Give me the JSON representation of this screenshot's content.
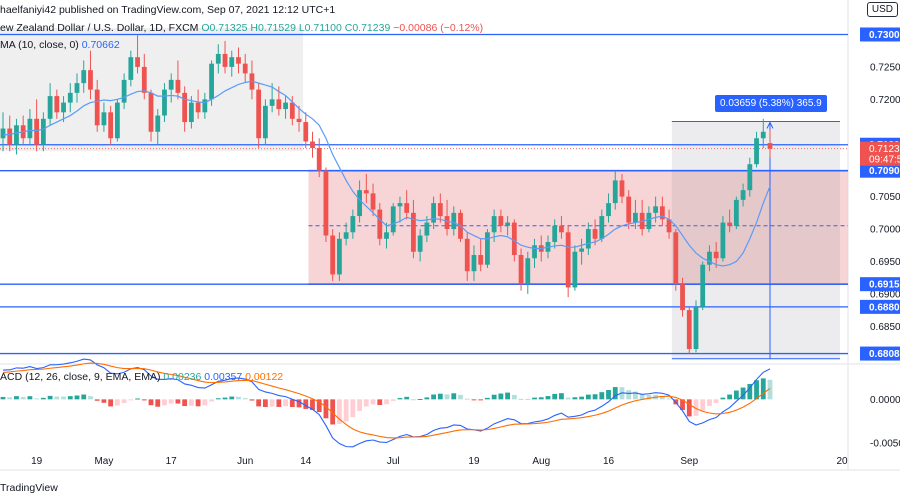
{
  "header": {
    "published": "haelfaniyi42 published on TradingView.com, Sep 07, 2021 12:12 UTC+1",
    "symbol": "ew Zealand Dollar / U.S. Dollar, 1D, FXCM",
    "ohlc": "O0.71325 H0.71529 L0.71100 C0.71239",
    "change": "−0.00086 (−0.12%)",
    "ma_label": "MA (10, close, 0)",
    "ma_value": "0.70662",
    "macd_label": "ACD (12, 26, close, 9, EMA, EMA)",
    "macd_hist": "0.00236",
    "macd_line": "0.00357",
    "macd_signal": "0.00122"
  },
  "currency_badge": "USD",
  "brand": "TradingView",
  "measure_label": "0.03659 (5.38%) 365.9",
  "price_axis": [
    {
      "v": 0.725,
      "t": "0.72500"
    },
    {
      "v": 0.72,
      "t": "0.72000"
    },
    {
      "v": 0.705,
      "t": "0.70500"
    },
    {
      "v": 0.7,
      "t": "0.70000"
    },
    {
      "v": 0.695,
      "t": "0.69500"
    },
    {
      "v": 0.69,
      "t": "0.69000"
    },
    {
      "v": 0.685,
      "t": "0.68500"
    }
  ],
  "price_levels": [
    {
      "v": 0.73,
      "t": "0.73000"
    },
    {
      "v": 0.713,
      "t": "0.71300"
    },
    {
      "v": 0.709,
      "t": "0.70900"
    },
    {
      "v": 0.6915,
      "t": "0.69150"
    },
    {
      "v": 0.688,
      "t": "0.68800"
    },
    {
      "v": 0.6808,
      "t": "0.68080"
    }
  ],
  "current_price": {
    "v": 0.71239,
    "t": "0.71239",
    "countdown": "09:47:5"
  },
  "macd_axis": [
    {
      "v": 0.0,
      "t": "0.00000"
    },
    {
      "v": -0.005,
      "t": "-0.00500"
    }
  ],
  "x_axis": [
    "19",
    "May",
    "17",
    "Jun",
    "14",
    "Jul",
    "19",
    "Aug",
    "16",
    "Sep",
    "20"
  ],
  "colors": {
    "up": "#26a69a",
    "down": "#ef5350",
    "ma": "#2962ff",
    "signal": "#ff6d00",
    "zone": "#f4c7c8",
    "zone_border": "#9c27b0",
    "level": "#2962ff"
  },
  "chart_data": {
    "type": "candlestick",
    "title": "New Zealand Dollar / U.S. Dollar, 1D, FXCM",
    "ylim": [
      0.6795,
      0.731
    ],
    "candles": [
      {
        "d": "Apr 12",
        "o": 0.714,
        "h": 0.718,
        "l": 0.712,
        "c": 0.7155
      },
      {
        "d": "Apr 13",
        "o": 0.7155,
        "h": 0.7175,
        "l": 0.712,
        "c": 0.713
      },
      {
        "d": "Apr 14",
        "o": 0.713,
        "h": 0.717,
        "l": 0.7115,
        "c": 0.716
      },
      {
        "d": "Apr 15",
        "o": 0.716,
        "h": 0.7175,
        "l": 0.713,
        "c": 0.714
      },
      {
        "d": "Apr 16",
        "o": 0.714,
        "h": 0.7185,
        "l": 0.713,
        "c": 0.717
      },
      {
        "d": "Apr 19",
        "o": 0.717,
        "h": 0.72,
        "l": 0.712,
        "c": 0.713
      },
      {
        "d": "Apr 20",
        "o": 0.713,
        "h": 0.718,
        "l": 0.712,
        "c": 0.717
      },
      {
        "d": "Apr 21",
        "o": 0.717,
        "h": 0.7225,
        "l": 0.716,
        "c": 0.7205
      },
      {
        "d": "Apr 22",
        "o": 0.7205,
        "h": 0.7215,
        "l": 0.717,
        "c": 0.718
      },
      {
        "d": "Apr 23",
        "o": 0.718,
        "h": 0.7205,
        "l": 0.7165,
        "c": 0.7195
      },
      {
        "d": "Apr 26",
        "o": 0.7195,
        "h": 0.7225,
        "l": 0.718,
        "c": 0.721
      },
      {
        "d": "Apr 27",
        "o": 0.721,
        "h": 0.724,
        "l": 0.7195,
        "c": 0.7225
      },
      {
        "d": "Apr 28",
        "o": 0.7225,
        "h": 0.726,
        "l": 0.721,
        "c": 0.7245
      },
      {
        "d": "Apr 29",
        "o": 0.7245,
        "h": 0.7275,
        "l": 0.72,
        "c": 0.7215
      },
      {
        "d": "Apr 30",
        "o": 0.7215,
        "h": 0.723,
        "l": 0.715,
        "c": 0.716
      },
      {
        "d": "May 3",
        "o": 0.716,
        "h": 0.7195,
        "l": 0.715,
        "c": 0.718
      },
      {
        "d": "May 4",
        "o": 0.718,
        "h": 0.719,
        "l": 0.713,
        "c": 0.714
      },
      {
        "d": "May 5",
        "o": 0.714,
        "h": 0.72,
        "l": 0.7135,
        "c": 0.7195
      },
      {
        "d": "May 6",
        "o": 0.7195,
        "h": 0.724,
        "l": 0.7185,
        "c": 0.723
      },
      {
        "d": "May 7",
        "o": 0.723,
        "h": 0.7275,
        "l": 0.722,
        "c": 0.7265
      },
      {
        "d": "May 10",
        "o": 0.7265,
        "h": 0.73,
        "l": 0.724,
        "c": 0.725
      },
      {
        "d": "May 11",
        "o": 0.725,
        "h": 0.727,
        "l": 0.72,
        "c": 0.721
      },
      {
        "d": "May 12",
        "o": 0.721,
        "h": 0.7215,
        "l": 0.7135,
        "c": 0.715
      },
      {
        "d": "May 13",
        "o": 0.715,
        "h": 0.7185,
        "l": 0.713,
        "c": 0.7175
      },
      {
        "d": "May 14",
        "o": 0.7175,
        "h": 0.7225,
        "l": 0.7165,
        "c": 0.7215
      },
      {
        "d": "May 17",
        "o": 0.7215,
        "h": 0.724,
        "l": 0.7195,
        "c": 0.723
      },
      {
        "d": "May 18",
        "o": 0.723,
        "h": 0.726,
        "l": 0.72,
        "c": 0.721
      },
      {
        "d": "May 19",
        "o": 0.721,
        "h": 0.722,
        "l": 0.715,
        "c": 0.7165
      },
      {
        "d": "May 20",
        "o": 0.7165,
        "h": 0.7205,
        "l": 0.7155,
        "c": 0.7195
      },
      {
        "d": "May 21",
        "o": 0.7195,
        "h": 0.7215,
        "l": 0.717,
        "c": 0.718
      },
      {
        "d": "May 24",
        "o": 0.718,
        "h": 0.721,
        "l": 0.717,
        "c": 0.72
      },
      {
        "d": "May 25",
        "o": 0.72,
        "h": 0.726,
        "l": 0.719,
        "c": 0.7255
      },
      {
        "d": "May 26",
        "o": 0.7255,
        "h": 0.7285,
        "l": 0.724,
        "c": 0.727
      },
      {
        "d": "May 27",
        "o": 0.727,
        "h": 0.729,
        "l": 0.724,
        "c": 0.725
      },
      {
        "d": "May 28",
        "o": 0.725,
        "h": 0.7275,
        "l": 0.7235,
        "c": 0.7265
      },
      {
        "d": "May 31",
        "o": 0.7265,
        "h": 0.728,
        "l": 0.724,
        "c": 0.7255
      },
      {
        "d": "Jun 1",
        "o": 0.7255,
        "h": 0.727,
        "l": 0.7225,
        "c": 0.724
      },
      {
        "d": "Jun 2",
        "o": 0.724,
        "h": 0.726,
        "l": 0.72,
        "c": 0.7215
      },
      {
        "d": "Jun 3",
        "o": 0.7215,
        "h": 0.7225,
        "l": 0.7125,
        "c": 0.714
      },
      {
        "d": "Jun 4",
        "o": 0.714,
        "h": 0.72,
        "l": 0.713,
        "c": 0.719
      },
      {
        "d": "Jun 7",
        "o": 0.719,
        "h": 0.7225,
        "l": 0.718,
        "c": 0.72
      },
      {
        "d": "Jun 8",
        "o": 0.72,
        "h": 0.722,
        "l": 0.7175,
        "c": 0.7185
      },
      {
        "d": "Jun 9",
        "o": 0.7185,
        "h": 0.7205,
        "l": 0.717,
        "c": 0.7195
      },
      {
        "d": "Jun 10",
        "o": 0.7195,
        "h": 0.7205,
        "l": 0.716,
        "c": 0.717
      },
      {
        "d": "Jun 11",
        "o": 0.717,
        "h": 0.719,
        "l": 0.715,
        "c": 0.7165
      },
      {
        "d": "Jun 14",
        "o": 0.7165,
        "h": 0.718,
        "l": 0.7125,
        "c": 0.7135
      },
      {
        "d": "Jun 15",
        "o": 0.7135,
        "h": 0.715,
        "l": 0.711,
        "c": 0.7125
      },
      {
        "d": "Jun 16",
        "o": 0.7125,
        "h": 0.714,
        "l": 0.708,
        "c": 0.709
      },
      {
        "d": "Jun 17",
        "o": 0.709,
        "h": 0.7095,
        "l": 0.698,
        "c": 0.699
      },
      {
        "d": "Jun 18",
        "o": 0.699,
        "h": 0.7,
        "l": 0.692,
        "c": 0.693
      },
      {
        "d": "Jun 21",
        "o": 0.693,
        "h": 0.6995,
        "l": 0.692,
        "c": 0.6985
      },
      {
        "d": "Jun 22",
        "o": 0.6985,
        "h": 0.701,
        "l": 0.6975,
        "c": 0.6995
      },
      {
        "d": "Jun 23",
        "o": 0.6995,
        "h": 0.703,
        "l": 0.6985,
        "c": 0.702
      },
      {
        "d": "Jun 24",
        "o": 0.702,
        "h": 0.7075,
        "l": 0.701,
        "c": 0.706
      },
      {
        "d": "Jun 25",
        "o": 0.706,
        "h": 0.7085,
        "l": 0.704,
        "c": 0.7055
      },
      {
        "d": "Jun 28",
        "o": 0.7055,
        "h": 0.707,
        "l": 0.702,
        "c": 0.703
      },
      {
        "d": "Jun 29",
        "o": 0.703,
        "h": 0.704,
        "l": 0.6975,
        "c": 0.6985
      },
      {
        "d": "Jun 30",
        "o": 0.6985,
        "h": 0.701,
        "l": 0.697,
        "c": 0.6995
      },
      {
        "d": "Jul 1",
        "o": 0.6995,
        "h": 0.704,
        "l": 0.699,
        "c": 0.7035
      },
      {
        "d": "Jul 2",
        "o": 0.7035,
        "h": 0.705,
        "l": 0.701,
        "c": 0.704
      },
      {
        "d": "Jul 5",
        "o": 0.704,
        "h": 0.706,
        "l": 0.7015,
        "c": 0.7025
      },
      {
        "d": "Jul 6",
        "o": 0.7025,
        "h": 0.7045,
        "l": 0.6955,
        "c": 0.6965
      },
      {
        "d": "Jul 7",
        "o": 0.6965,
        "h": 0.7,
        "l": 0.695,
        "c": 0.699
      },
      {
        "d": "Jul 8",
        "o": 0.699,
        "h": 0.702,
        "l": 0.698,
        "c": 0.701
      },
      {
        "d": "Jul 9",
        "o": 0.701,
        "h": 0.705,
        "l": 0.7,
        "c": 0.704
      },
      {
        "d": "Jul 12",
        "o": 0.704,
        "h": 0.7055,
        "l": 0.701,
        "c": 0.702
      },
      {
        "d": "Jul 13",
        "o": 0.702,
        "h": 0.7045,
        "l": 0.699,
        "c": 0.7
      },
      {
        "d": "Jul 14",
        "o": 0.7,
        "h": 0.7035,
        "l": 0.699,
        "c": 0.7025
      },
      {
        "d": "Jul 15",
        "o": 0.7025,
        "h": 0.703,
        "l": 0.698,
        "c": 0.6985
      },
      {
        "d": "Jul 16",
        "o": 0.6985,
        "h": 0.6995,
        "l": 0.692,
        "c": 0.6935
      },
      {
        "d": "Jul 19",
        "o": 0.6935,
        "h": 0.6975,
        "l": 0.692,
        "c": 0.696
      },
      {
        "d": "Jul 20",
        "o": 0.696,
        "h": 0.6985,
        "l": 0.6935,
        "c": 0.6945
      },
      {
        "d": "Jul 21",
        "o": 0.6945,
        "h": 0.7,
        "l": 0.694,
        "c": 0.6995
      },
      {
        "d": "Jul 22",
        "o": 0.6995,
        "h": 0.703,
        "l": 0.698,
        "c": 0.702
      },
      {
        "d": "Jul 23",
        "o": 0.702,
        "h": 0.703,
        "l": 0.6995,
        "c": 0.7005
      },
      {
        "d": "Jul 26",
        "o": 0.7005,
        "h": 0.702,
        "l": 0.699,
        "c": 0.701
      },
      {
        "d": "Jul 27",
        "o": 0.701,
        "h": 0.7015,
        "l": 0.695,
        "c": 0.696
      },
      {
        "d": "Jul 28",
        "o": 0.696,
        "h": 0.697,
        "l": 0.6905,
        "c": 0.6915
      },
      {
        "d": "Jul 29",
        "o": 0.6915,
        "h": 0.6965,
        "l": 0.69,
        "c": 0.6955
      },
      {
        "d": "Jul 30",
        "o": 0.6955,
        "h": 0.6985,
        "l": 0.694,
        "c": 0.6975
      },
      {
        "d": "Aug 2",
        "o": 0.6975,
        "h": 0.699,
        "l": 0.695,
        "c": 0.6965
      },
      {
        "d": "Aug 3",
        "o": 0.6965,
        "h": 0.699,
        "l": 0.6955,
        "c": 0.698
      },
      {
        "d": "Aug 4",
        "o": 0.698,
        "h": 0.7015,
        "l": 0.697,
        "c": 0.7005
      },
      {
        "d": "Aug 5",
        "o": 0.7005,
        "h": 0.702,
        "l": 0.6985,
        "c": 0.6995
      },
      {
        "d": "Aug 6",
        "o": 0.6995,
        "h": 0.7005,
        "l": 0.6895,
        "c": 0.691
      },
      {
        "d": "Aug 9",
        "o": 0.691,
        "h": 0.6975,
        "l": 0.6905,
        "c": 0.6965
      },
      {
        "d": "Aug 10",
        "o": 0.6965,
        "h": 0.6985,
        "l": 0.6945,
        "c": 0.697
      },
      {
        "d": "Aug 11",
        "o": 0.697,
        "h": 0.701,
        "l": 0.696,
        "c": 0.7
      },
      {
        "d": "Aug 12",
        "o": 0.7,
        "h": 0.7015,
        "l": 0.6975,
        "c": 0.6985
      },
      {
        "d": "Aug 13",
        "o": 0.6985,
        "h": 0.703,
        "l": 0.698,
        "c": 0.702
      },
      {
        "d": "Aug 16",
        "o": 0.702,
        "h": 0.7055,
        "l": 0.701,
        "c": 0.704
      },
      {
        "d": "Aug 17",
        "o": 0.704,
        "h": 0.709,
        "l": 0.703,
        "c": 0.7075
      },
      {
        "d": "Aug 18",
        "o": 0.7075,
        "h": 0.7085,
        "l": 0.704,
        "c": 0.705
      },
      {
        "d": "Aug 19",
        "o": 0.705,
        "h": 0.706,
        "l": 0.7,
        "c": 0.701
      },
      {
        "d": "Aug 20",
        "o": 0.701,
        "h": 0.7045,
        "l": 0.7,
        "c": 0.7025
      },
      {
        "d": "Aug 23",
        "o": 0.7025,
        "h": 0.7045,
        "l": 0.699,
        "c": 0.7
      },
      {
        "d": "Aug 24",
        "o": 0.7,
        "h": 0.7035,
        "l": 0.6995,
        "c": 0.7025
      },
      {
        "d": "Aug 25",
        "o": 0.7025,
        "h": 0.705,
        "l": 0.701,
        "c": 0.7035
      },
      {
        "d": "Aug 26",
        "o": 0.7035,
        "h": 0.705,
        "l": 0.7005,
        "c": 0.7015
      },
      {
        "d": "Aug 27",
        "o": 0.7015,
        "h": 0.703,
        "l": 0.6985,
        "c": 0.6995
      },
      {
        "d": "Aug 30",
        "o": 0.6995,
        "h": 0.7,
        "l": 0.6905,
        "c": 0.6915
      },
      {
        "d": "Aug 31",
        "o": 0.6915,
        "h": 0.6925,
        "l": 0.6865,
        "c": 0.6875
      },
      {
        "d": "Sep 1",
        "o": 0.6875,
        "h": 0.688,
        "l": 0.6808,
        "c": 0.6815
      },
      {
        "d": "Sep 2",
        "o": 0.6815,
        "h": 0.689,
        "l": 0.681,
        "c": 0.688
      },
      {
        "d": "Sep 3",
        "o": 0.688,
        "h": 0.695,
        "l": 0.6875,
        "c": 0.6945
      },
      {
        "d": "Sep 6",
        "o": 0.6945,
        "h": 0.6975,
        "l": 0.6935,
        "c": 0.6965
      },
      {
        "d": "Sep 7",
        "o": 0.6965,
        "h": 0.698,
        "l": 0.694,
        "c": 0.6955
      },
      {
        "d": "Sep 8",
        "o": 0.6955,
        "h": 0.702,
        "l": 0.695,
        "c": 0.701
      },
      {
        "d": "Sep 9",
        "o": 0.701,
        "h": 0.703,
        "l": 0.6995,
        "c": 0.7005
      },
      {
        "d": "Sep 10",
        "o": 0.7005,
        "h": 0.705,
        "l": 0.7,
        "c": 0.7045
      },
      {
        "d": "Sep 13",
        "o": 0.7045,
        "h": 0.707,
        "l": 0.7035,
        "c": 0.706
      },
      {
        "d": "Sep 14",
        "o": 0.706,
        "h": 0.711,
        "l": 0.705,
        "c": 0.71
      },
      {
        "d": "Sep 15",
        "o": 0.71,
        "h": 0.715,
        "l": 0.7095,
        "c": 0.714
      },
      {
        "d": "Sep 16",
        "o": 0.714,
        "h": 0.717,
        "l": 0.7125,
        "c": 0.715
      },
      {
        "d": "Sep 17",
        "o": 0.71325,
        "h": 0.71529,
        "l": 0.711,
        "c": 0.71239
      }
    ],
    "ma10": [
      0.7145,
      0.7146,
      0.7148,
      0.715,
      0.7152,
      0.7152,
      0.7154,
      0.716,
      0.7165,
      0.717,
      0.7175,
      0.7182,
      0.719,
      0.7195,
      0.7197,
      0.7199,
      0.7198,
      0.72,
      0.7203,
      0.7208,
      0.7212,
      0.7213,
      0.721,
      0.7205,
      0.7205,
      0.7206,
      0.7205,
      0.72,
      0.7198,
      0.7196,
      0.7195,
      0.72,
      0.7206,
      0.7213,
      0.7218,
      0.7223,
      0.7226,
      0.7228,
      0.7225,
      0.7222,
      0.7219,
      0.7212,
      0.7206,
      0.7196,
      0.7186,
      0.7177,
      0.717,
      0.716,
      0.714,
      0.7115,
      0.7095,
      0.7075,
      0.7058,
      0.7045,
      0.7035,
      0.7025,
      0.7015,
      0.7005,
      0.7008,
      0.7012,
      0.7018,
      0.7015,
      0.7013,
      0.7014,
      0.7016,
      0.7015,
      0.7012,
      0.701,
      0.7005,
      0.6995,
      0.699,
      0.6985,
      0.6985,
      0.6988,
      0.699,
      0.6988,
      0.6982,
      0.6975,
      0.6972,
      0.697,
      0.697,
      0.6972,
      0.6974,
      0.6975,
      0.6972,
      0.6972,
      0.6975,
      0.6978,
      0.698,
      0.6985,
      0.6992,
      0.7,
      0.7005,
      0.7008,
      0.701,
      0.7012,
      0.7015,
      0.7018,
      0.702,
      0.7015,
      0.7005,
      0.699,
      0.6975,
      0.6963,
      0.6955,
      0.695,
      0.6945,
      0.6943,
      0.6945,
      0.695,
      0.6963,
      0.6985,
      0.701,
      0.704,
      0.7066
    ],
    "macd": {
      "line_label": "0.00357",
      "signal_label": "0.00122",
      "hist_label": "0.00236",
      "ylim": [
        -0.006,
        0.0038
      ]
    },
    "zones": [
      {
        "from": "Jun 15",
        "to": "Sep 17",
        "top": 0.709,
        "bottom": 0.6915,
        "mid": 0.7005
      },
      {
        "from": "Apr 12",
        "to": "Jun 11",
        "top": 0.731,
        "bottom": 0.712
      },
      {
        "from": "Aug 30",
        "to": "Sep 17",
        "top": 0.71659,
        "bottom": 0.68
      }
    ]
  }
}
